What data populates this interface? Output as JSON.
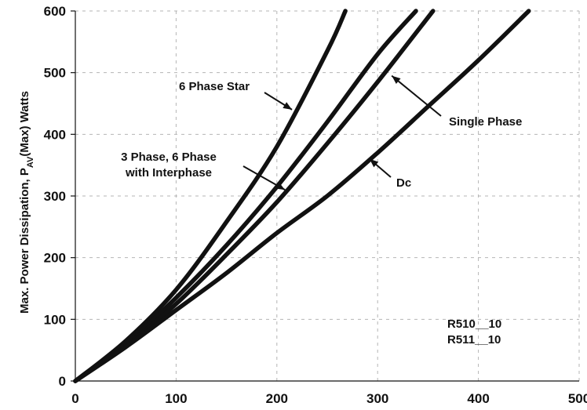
{
  "chart_data": {
    "type": "line",
    "xlim": [
      0,
      500
    ],
    "ylim": [
      0,
      600
    ],
    "x_ticks": [
      0,
      100,
      200,
      300,
      400,
      500
    ],
    "y_ticks": [
      0,
      100,
      200,
      300,
      400,
      500,
      600
    ],
    "ylabel_parts": [
      "Max. Power Dissipation, P",
      "AV",
      "(Max) Watts"
    ],
    "grid": true,
    "series": [
      {
        "name": "6 Phase Star",
        "x": [
          0,
          50,
          100,
          150,
          200,
          250,
          268
        ],
        "y": [
          0,
          65,
          148,
          258,
          380,
          535,
          600
        ]
      },
      {
        "name": "3 Phase, 6 Phase with Interphase",
        "x": [
          0,
          50,
          100,
          150,
          200,
          250,
          300,
          338
        ],
        "y": [
          0,
          60,
          135,
          220,
          315,
          420,
          530,
          600
        ]
      },
      {
        "name": "Single Phase",
        "x": [
          0,
          50,
          100,
          150,
          200,
          250,
          300,
          355
        ],
        "y": [
          0,
          57,
          125,
          205,
          290,
          385,
          485,
          600
        ]
      },
      {
        "name": "Dc",
        "x": [
          0,
          50,
          100,
          150,
          200,
          250,
          300,
          350,
          400,
          450
        ],
        "y": [
          0,
          55,
          115,
          175,
          240,
          300,
          370,
          445,
          520,
          600
        ]
      }
    ],
    "annotations": [
      {
        "lines": [
          "6 Phase Star"
        ],
        "target": [
          215,
          440
        ]
      },
      {
        "lines": [
          "3 Phase, 6 Phase",
          "with Interphase"
        ],
        "target": [
          208,
          310
        ]
      },
      {
        "lines": [
          "Single Phase"
        ],
        "target": [
          314,
          495
        ]
      },
      {
        "lines": [
          "Dc"
        ],
        "target": [
          292,
          360
        ]
      },
      {
        "lines": [
          "R510__10",
          "R511__10"
        ]
      }
    ]
  }
}
